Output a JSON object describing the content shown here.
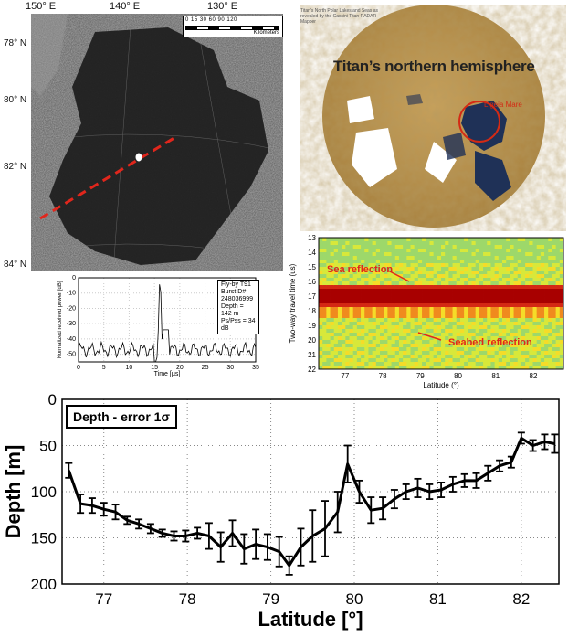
{
  "radar": {
    "lon_labels": [
      "150° E",
      "140° E",
      "130° E"
    ],
    "lat_labels": [
      "78° N",
      "80° N",
      "82° N",
      "84° N"
    ],
    "scale_numbers": "0 15 30  60  90  120",
    "scale_unit": "Kilometers"
  },
  "mini_plot": {
    "ylabel": "Normalized received power [dB]",
    "xlabel": "Time [µs]",
    "xticks": [
      "0",
      "5",
      "10",
      "15",
      "20",
      "25",
      "30",
      "35"
    ],
    "yticks": [
      "0",
      "-10",
      "-20",
      "-30",
      "-40",
      "-50"
    ],
    "info": [
      "Fly-by T91",
      "BurstID# 248036999",
      "Depth = 142 m",
      "Ps/Pss = 34 dB"
    ]
  },
  "globe": {
    "caption": "Titan's North Polar Lakes and Seas as revealed by the Cassini Titan RADAR Mapper",
    "title": "Titan’s northern hemisphere",
    "label": "Ligeia Mare"
  },
  "heatmap": {
    "ylabel": "Two-way travel time (us)",
    "xlabel": "Latitude (°)",
    "yticks": [
      "13",
      "14",
      "15",
      "16",
      "17",
      "18",
      "19",
      "20",
      "21",
      "22"
    ],
    "xticks": [
      "77",
      "78",
      "79",
      "80",
      "81",
      "82"
    ],
    "annotation_sea": "Sea reflection",
    "annotation_seabed": "Seabed reflection"
  },
  "colors": {
    "dashed_line": "#e0261c",
    "sea_band": "#a80000",
    "annotation": "#e0261c"
  },
  "chart_data": {
    "type": "line",
    "title": "Depth - error 1σ",
    "xlabel": "Latitude [°]",
    "ylabel": "Depth [m]",
    "xlim": [
      76.5,
      82.45
    ],
    "ylim": [
      200,
      0
    ],
    "xticks": [
      77,
      78,
      79,
      80,
      81,
      82
    ],
    "yticks": [
      0,
      50,
      100,
      150,
      200
    ],
    "grid": true,
    "x": [
      76.58,
      76.72,
      76.86,
      77.0,
      77.14,
      77.28,
      77.42,
      77.56,
      77.7,
      77.84,
      77.98,
      78.12,
      78.26,
      78.4,
      78.54,
      78.68,
      78.82,
      78.96,
      79.1,
      79.22,
      79.36,
      79.5,
      79.65,
      79.8,
      79.92,
      80.06,
      80.2,
      80.34,
      80.48,
      80.62,
      80.76,
      80.9,
      81.04,
      81.18,
      81.32,
      81.46,
      81.6,
      81.74,
      81.88,
      82.0,
      82.14,
      82.28,
      82.4
    ],
    "y": [
      77,
      113,
      115,
      119,
      122,
      131,
      135,
      140,
      145,
      148,
      148,
      145,
      148,
      160,
      145,
      162,
      157,
      160,
      165,
      180,
      160,
      148,
      140,
      122,
      70,
      100,
      120,
      118,
      108,
      100,
      96,
      100,
      98,
      92,
      88,
      88,
      80,
      72,
      68,
      42,
      50,
      46,
      48
    ],
    "error": [
      8,
      10,
      8,
      7,
      8,
      4,
      5,
      5,
      4,
      5,
      6,
      6,
      14,
      16,
      14,
      16,
      16,
      14,
      16,
      10,
      20,
      28,
      30,
      22,
      20,
      12,
      14,
      12,
      10,
      8,
      10,
      8,
      8,
      8,
      7,
      8,
      8,
      6,
      6,
      6,
      6,
      8,
      10
    ]
  }
}
